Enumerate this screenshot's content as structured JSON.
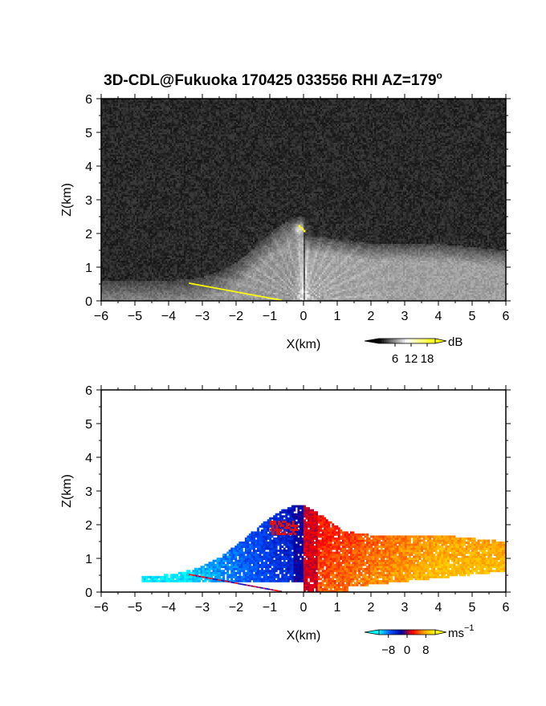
{
  "title": "3D-CDL@Fukuoka 170425 033556 RHI AZ=179",
  "title_degree": "o",
  "chart_data": [
    {
      "type": "heatmap",
      "panel": "backscatter",
      "x_range": [
        -6,
        6
      ],
      "y_range": [
        0,
        6
      ],
      "xlabel": "X(km)",
      "ylabel": "Z(km)",
      "x_ticks": [
        -6,
        -5,
        -4,
        -3,
        -2,
        -1,
        0,
        1,
        2,
        3,
        4,
        5,
        6
      ],
      "y_ticks": [
        0,
        1,
        2,
        3,
        4,
        5,
        6
      ],
      "colorbar": {
        "unit": "dB",
        "ticks": [
          6,
          12,
          18
        ],
        "range": [
          0,
          21
        ],
        "colors": [
          "#000000",
          "#ffffff",
          "#ffff00"
        ]
      },
      "features": {
        "plume_max_height_km": 2.5,
        "layer_top_km": [
          [
            0.5,
            1.9
          ],
          [
            2,
            1.7
          ],
          [
            4,
            1.7
          ],
          [
            6,
            1.5
          ]
        ],
        "yellow_surface_echo_x_km": [
          -3.4,
          -0.7
        ]
      }
    },
    {
      "type": "heatmap",
      "panel": "doppler_velocity",
      "x_range": [
        -6,
        6
      ],
      "y_range": [
        0,
        6
      ],
      "xlabel": "X(km)",
      "ylabel": "Z(km)",
      "x_ticks": [
        -6,
        -5,
        -4,
        -3,
        -2,
        -1,
        0,
        1,
        2,
        3,
        4,
        5,
        6
      ],
      "y_ticks": [
        0,
        1,
        2,
        3,
        4,
        5,
        6
      ],
      "colorbar": {
        "unit": "ms",
        "unit_exponent": "−1",
        "ticks": [
          -8,
          0,
          8
        ],
        "tick_labels": [
          "−8",
          "0",
          "8"
        ],
        "range": [
          -12,
          12
        ],
        "colors": [
          "#00ffff",
          "#0050ff",
          "#0000a0",
          "#ff0000",
          "#ffa000",
          "#ffff00"
        ]
      },
      "features": {
        "negative_velocity_region_x_km": [
          -4.8,
          0
        ],
        "positive_velocity_region_x_km": [
          0,
          6
        ],
        "echo_top_km": 2.6
      }
    }
  ]
}
